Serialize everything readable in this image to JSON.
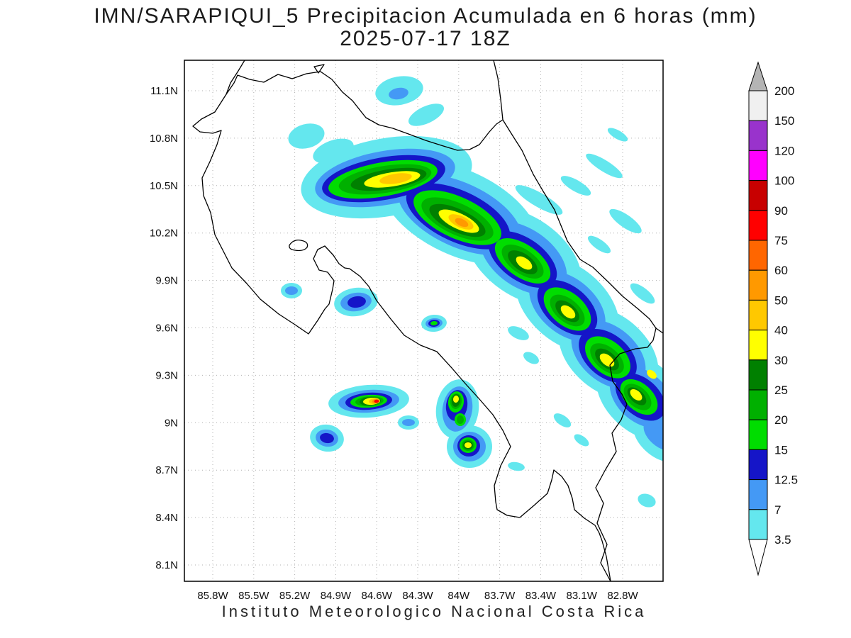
{
  "title": {
    "line1": "IMN/SARAPIQUI_5 Precipitacion Acumulada en 6 horas (mm)",
    "line2": "2025-07-17 18Z"
  },
  "footer": {
    "caption": "Instituto Meteorologico Nacional Costa Rica"
  },
  "chart_data": {
    "type": "heatmap",
    "subtype": "filled_contour_precipitation_map",
    "title": "IMN/SARAPIQUI_5 Precipitacion Acumulada en 6 horas (mm)",
    "subtitle": "2025-07-17 18Z",
    "units": "mm",
    "region": "Costa Rica",
    "grid": true,
    "legend_position": "right",
    "x_ticks": [
      "85.8W",
      "85.5W",
      "85.2W",
      "84.9W",
      "84.6W",
      "84.3W",
      "84W",
      "83.7W",
      "83.4W",
      "83.1W",
      "82.8W"
    ],
    "y_ticks": [
      "11.1N",
      "10.8N",
      "10.5N",
      "10.2N",
      "9.9N",
      "9.6N",
      "9.3N",
      "9N",
      "8.7N",
      "8.4N",
      "8.1N"
    ],
    "under_color": "#FFFFFF",
    "over_color": "#B4B4B4",
    "levels": [
      {
        "value": "3.5",
        "band_color": "#64E7EE"
      },
      {
        "value": "7",
        "band_color": "#4499F5"
      },
      {
        "value": "12.5",
        "band_color": "#1515C8"
      },
      {
        "value": "15",
        "band_color": "#00DD00"
      },
      {
        "value": "20",
        "band_color": "#00B000"
      },
      {
        "value": "25",
        "band_color": "#008000"
      },
      {
        "value": "30",
        "band_color": "#FFFF00"
      },
      {
        "value": "40",
        "band_color": "#FFC800"
      },
      {
        "value": "50",
        "band_color": "#FF9900"
      },
      {
        "value": "60",
        "band_color": "#FF6600"
      },
      {
        "value": "75",
        "band_color": "#FF0000"
      },
      {
        "value": "90",
        "band_color": "#C80000"
      },
      {
        "value": "100",
        "band_color": "#FF00FF"
      },
      {
        "value": "120",
        "band_color": "#9933CC"
      },
      {
        "value": "150",
        "band_color": "#F0F0F0"
      },
      {
        "value": "200",
        "band_color": "#B4B4B4"
      }
    ],
    "cells": [
      {
        "x": 545,
        "y": 250,
        "rx": 122,
        "ry": 55,
        "rot": -10,
        "l": 0
      },
      {
        "x": 648,
        "y": 300,
        "rx": 118,
        "ry": 60,
        "rot": 25,
        "l": 0
      },
      {
        "x": 738,
        "y": 362,
        "rx": 92,
        "ry": 56,
        "rot": 35,
        "l": 0
      },
      {
        "x": 800,
        "y": 430,
        "rx": 84,
        "ry": 54,
        "rot": 40,
        "l": 0
      },
      {
        "x": 858,
        "y": 498,
        "rx": 80,
        "ry": 54,
        "rot": 40,
        "l": 0
      },
      {
        "x": 905,
        "y": 560,
        "rx": 74,
        "ry": 50,
        "rot": 42,
        "l": 0
      },
      {
        "x": 930,
        "y": 616,
        "rx": 44,
        "ry": 28,
        "rot": 42,
        "l": 0
      },
      {
        "x": 432,
        "y": 192,
        "rx": 26,
        "ry": 17,
        "rot": -15,
        "l": 0
      },
      {
        "x": 470,
        "y": 213,
        "rx": 30,
        "ry": 15,
        "rot": -20,
        "l": 0
      },
      {
        "x": 563,
        "y": 128,
        "rx": 34,
        "ry": 20,
        "rot": -10,
        "l": 0
      },
      {
        "x": 601,
        "y": 162,
        "rx": 27,
        "ry": 12,
        "rot": -25,
        "l": 0
      },
      {
        "x": 760,
        "y": 282,
        "rx": 38,
        "ry": 10,
        "rot": 30,
        "l": 0
      },
      {
        "x": 812,
        "y": 262,
        "rx": 24,
        "ry": 8,
        "rot": 30,
        "l": 0
      },
      {
        "x": 852,
        "y": 234,
        "rx": 30,
        "ry": 8,
        "rot": 32,
        "l": 0
      },
      {
        "x": 882,
        "y": 312,
        "rx": 27,
        "ry": 9,
        "rot": 35,
        "l": 0
      },
      {
        "x": 845,
        "y": 345,
        "rx": 19,
        "ry": 7,
        "rot": 35,
        "l": 0
      },
      {
        "x": 906,
        "y": 414,
        "rx": 21,
        "ry": 8,
        "rot": 38,
        "l": 0
      },
      {
        "x": 871,
        "y": 190,
        "rx": 16,
        "ry": 6,
        "rot": 30,
        "l": 0
      },
      {
        "x": 520,
        "y": 566,
        "rx": 57,
        "ry": 23,
        "rot": -4,
        "l": 0
      },
      {
        "x": 576,
        "y": 596,
        "rx": 15,
        "ry": 10,
        "rot": 0,
        "l": 0
      },
      {
        "x": 645,
        "y": 577,
        "rx": 30,
        "ry": 42,
        "rot": 8,
        "l": 0
      },
      {
        "x": 662,
        "y": 630,
        "rx": 32,
        "ry": 30,
        "rot": 0,
        "l": 0
      },
      {
        "x": 461,
        "y": 618,
        "rx": 24,
        "ry": 19,
        "rot": 10,
        "l": 0
      },
      {
        "x": 502,
        "y": 426,
        "rx": 31,
        "ry": 20,
        "rot": -8,
        "l": 0
      },
      {
        "x": 411,
        "y": 410,
        "rx": 15,
        "ry": 11,
        "rot": 0,
        "l": 0
      },
      {
        "x": 612,
        "y": 456,
        "rx": 18,
        "ry": 12,
        "rot": -5,
        "l": 0
      },
      {
        "x": 731,
        "y": 470,
        "rx": 16,
        "ry": 8,
        "rot": 25,
        "l": 0
      },
      {
        "x": 749,
        "y": 505,
        "rx": 12,
        "ry": 7,
        "rot": 30,
        "l": 0
      },
      {
        "x": 793,
        "y": 593,
        "rx": 14,
        "ry": 7,
        "rot": 35,
        "l": 0
      },
      {
        "x": 820,
        "y": 621,
        "rx": 12,
        "ry": 6,
        "rot": 35,
        "l": 0
      },
      {
        "x": 912,
        "y": 706,
        "rx": 13,
        "ry": 9,
        "rot": 20,
        "l": 0
      },
      {
        "x": 728,
        "y": 658,
        "rx": 12,
        "ry": 6,
        "rot": 10,
        "l": 0
      },
      {
        "x": 543,
        "y": 251,
        "rx": 100,
        "ry": 38,
        "rot": -10,
        "l": 1
      },
      {
        "x": 648,
        "y": 303,
        "rx": 94,
        "ry": 45,
        "rot": 25,
        "l": 1
      },
      {
        "x": 738,
        "y": 364,
        "rx": 69,
        "ry": 41,
        "rot": 35,
        "l": 1
      },
      {
        "x": 800,
        "y": 432,
        "rx": 62,
        "ry": 39,
        "rot": 40,
        "l": 1
      },
      {
        "x": 858,
        "y": 500,
        "rx": 60,
        "ry": 39,
        "rot": 40,
        "l": 1
      },
      {
        "x": 905,
        "y": 560,
        "rx": 52,
        "ry": 35,
        "rot": 42,
        "l": 1
      },
      {
        "x": 562,
        "y": 132,
        "rx": 14,
        "ry": 8,
        "rot": -10,
        "l": 1
      },
      {
        "x": 520,
        "y": 566,
        "rx": 43,
        "ry": 16,
        "rot": -4,
        "l": 1
      },
      {
        "x": 645,
        "y": 577,
        "rx": 21,
        "ry": 32,
        "rot": 8,
        "l": 1
      },
      {
        "x": 662,
        "y": 630,
        "rx": 23,
        "ry": 21,
        "rot": 0,
        "l": 1
      },
      {
        "x": 461,
        "y": 618,
        "rx": 16,
        "ry": 12,
        "rot": 10,
        "l": 1
      },
      {
        "x": 502,
        "y": 426,
        "rx": 22,
        "ry": 13,
        "rot": -8,
        "l": 1
      },
      {
        "x": 411,
        "y": 410,
        "rx": 9,
        "ry": 6,
        "rot": 0,
        "l": 1
      },
      {
        "x": 612,
        "y": 456,
        "rx": 12,
        "ry": 7,
        "rot": -5,
        "l": 1
      },
      {
        "x": 576,
        "y": 596,
        "rx": 9,
        "ry": 5,
        "rot": 0,
        "l": 1
      },
      {
        "x": 930,
        "y": 614,
        "rx": 27,
        "ry": 15,
        "rot": 42,
        "l": 1
      },
      {
        "x": 541,
        "y": 252,
        "rx": 88,
        "ry": 30,
        "rot": -10,
        "l": 2
      },
      {
        "x": 646,
        "y": 305,
        "rx": 79,
        "ry": 36,
        "rot": 25,
        "l": 2
      },
      {
        "x": 737,
        "y": 366,
        "rx": 55,
        "ry": 30,
        "rot": 35,
        "l": 2
      },
      {
        "x": 800,
        "y": 434,
        "rx": 49,
        "ry": 30,
        "rot": 40,
        "l": 2
      },
      {
        "x": 857,
        "y": 502,
        "rx": 47,
        "ry": 30,
        "rot": 40,
        "l": 2
      },
      {
        "x": 903,
        "y": 560,
        "rx": 41,
        "ry": 26,
        "rot": 42,
        "l": 2
      },
      {
        "x": 520,
        "y": 566,
        "rx": 33,
        "ry": 12,
        "rot": -4,
        "l": 2
      },
      {
        "x": 644,
        "y": 572,
        "rx": 15,
        "ry": 22,
        "rot": 8,
        "l": 2
      },
      {
        "x": 661,
        "y": 629,
        "rx": 16,
        "ry": 15,
        "rot": 0,
        "l": 2
      },
      {
        "x": 461,
        "y": 618,
        "rx": 10,
        "ry": 7,
        "rot": 10,
        "l": 2
      },
      {
        "x": 503,
        "y": 426,
        "rx": 13,
        "ry": 8,
        "rot": -8,
        "l": 2
      },
      {
        "x": 612,
        "y": 456,
        "rx": 8,
        "ry": 5,
        "rot": -5,
        "l": 2
      },
      {
        "x": 540,
        "y": 253,
        "rx": 78,
        "ry": 24,
        "rot": -10,
        "l": 3
      },
      {
        "x": 645,
        "y": 307,
        "rx": 67,
        "ry": 29,
        "rot": 25,
        "l": 3
      },
      {
        "x": 737,
        "y": 368,
        "rx": 45,
        "ry": 23,
        "rot": 35,
        "l": 3
      },
      {
        "x": 800,
        "y": 436,
        "rx": 39,
        "ry": 23,
        "rot": 40,
        "l": 3
      },
      {
        "x": 857,
        "y": 504,
        "rx": 37,
        "ry": 23,
        "rot": 40,
        "l": 3
      },
      {
        "x": 901,
        "y": 560,
        "rx": 31,
        "ry": 19,
        "rot": 42,
        "l": 3
      },
      {
        "x": 520,
        "y": 566,
        "rx": 26,
        "ry": 9,
        "rot": -4,
        "l": 3
      },
      {
        "x": 643,
        "y": 567,
        "rx": 11,
        "ry": 15,
        "rot": 8,
        "l": 3
      },
      {
        "x": 649,
        "y": 592,
        "rx": 8,
        "ry": 9,
        "rot": 0,
        "l": 3
      },
      {
        "x": 660,
        "y": 628,
        "rx": 12,
        "ry": 11,
        "rot": 0,
        "l": 3
      },
      {
        "x": 612,
        "y": 456,
        "rx": 5,
        "ry": 3,
        "rot": -5,
        "l": 3
      },
      {
        "x": 543,
        "y": 253,
        "rx": 66,
        "ry": 19,
        "rot": -9,
        "l": 4
      },
      {
        "x": 645,
        "y": 309,
        "rx": 55,
        "ry": 22,
        "rot": 25,
        "l": 4
      },
      {
        "x": 737,
        "y": 369,
        "rx": 34,
        "ry": 17,
        "rot": 35,
        "l": 4
      },
      {
        "x": 800,
        "y": 438,
        "rx": 29,
        "ry": 16,
        "rot": 40,
        "l": 4
      },
      {
        "x": 856,
        "y": 506,
        "rx": 28,
        "ry": 16,
        "rot": 40,
        "l": 4
      },
      {
        "x": 899,
        "y": 560,
        "rx": 23,
        "ry": 14,
        "rot": 42,
        "l": 4
      },
      {
        "x": 521,
        "y": 566,
        "rx": 20,
        "ry": 7,
        "rot": -4,
        "l": 4
      },
      {
        "x": 643,
        "y": 566,
        "rx": 8,
        "ry": 11,
        "rot": 8,
        "l": 4
      },
      {
        "x": 649,
        "y": 592,
        "rx": 5,
        "ry": 6,
        "rot": 0,
        "l": 4
      },
      {
        "x": 660,
        "y": 628,
        "rx": 9,
        "ry": 8,
        "rot": 0,
        "l": 4
      },
      {
        "x": 548,
        "y": 253,
        "rx": 54,
        "ry": 14,
        "rot": -9,
        "l": 5
      },
      {
        "x": 645,
        "y": 311,
        "rx": 43,
        "ry": 16,
        "rot": 25,
        "l": 5
      },
      {
        "x": 737,
        "y": 370,
        "rx": 24,
        "ry": 12,
        "rot": 35,
        "l": 5
      },
      {
        "x": 800,
        "y": 439,
        "rx": 20,
        "ry": 11,
        "rot": 40,
        "l": 5
      },
      {
        "x": 856,
        "y": 507,
        "rx": 20,
        "ry": 11,
        "rot": 40,
        "l": 5
      },
      {
        "x": 898,
        "y": 559,
        "rx": 16,
        "ry": 9,
        "rot": 42,
        "l": 5
      },
      {
        "x": 522,
        "y": 566,
        "rx": 15,
        "ry": 6,
        "rot": -4,
        "l": 5
      },
      {
        "x": 643,
        "y": 565,
        "rx": 6,
        "ry": 9,
        "rot": 8,
        "l": 5
      },
      {
        "x": 660,
        "y": 628,
        "rx": 7,
        "ry": 6,
        "rot": 0,
        "l": 5
      },
      {
        "x": 553,
        "y": 253,
        "rx": 40,
        "ry": 10,
        "rot": -9,
        "l": 6
      },
      {
        "x": 647,
        "y": 312,
        "rx": 31,
        "ry": 11,
        "rot": 25,
        "l": 6
      },
      {
        "x": 739,
        "y": 371,
        "rx": 13,
        "ry": 7,
        "rot": 35,
        "l": 6
      },
      {
        "x": 801,
        "y": 440,
        "rx": 12,
        "ry": 7,
        "rot": 40,
        "l": 6
      },
      {
        "x": 856,
        "y": 508,
        "rx": 12,
        "ry": 7,
        "rot": 40,
        "l": 6
      },
      {
        "x": 897,
        "y": 557,
        "rx": 10,
        "ry": 6,
        "rot": 42,
        "l": 6
      },
      {
        "x": 919,
        "y": 528,
        "rx": 8,
        "ry": 5,
        "rot": 40,
        "l": 6
      },
      {
        "x": 524,
        "y": 566,
        "rx": 12,
        "ry": 5,
        "rot": -4,
        "l": 6
      },
      {
        "x": 643,
        "y": 563,
        "rx": 4,
        "ry": 5,
        "rot": 8,
        "l": 6
      },
      {
        "x": 660,
        "y": 628,
        "rx": 5,
        "ry": 4,
        "rot": 0,
        "l": 6
      },
      {
        "x": 558,
        "y": 252,
        "rx": 23,
        "ry": 7,
        "rot": -9,
        "l": 7
      },
      {
        "x": 650,
        "y": 313,
        "rx": 19,
        "ry": 8,
        "rot": 25,
        "l": 7
      },
      {
        "x": 528,
        "y": 566,
        "rx": 8,
        "ry": 4,
        "rot": -4,
        "l": 7
      },
      {
        "x": 651,
        "y": 314,
        "rx": 10,
        "ry": 5,
        "rot": 25,
        "l": 8
      },
      {
        "x": 530,
        "y": 566,
        "rx": 5.5,
        "ry": 3,
        "rot": -4,
        "l": 8
      },
      {
        "x": 531,
        "y": 566,
        "rx": 3.5,
        "ry": 2.2,
        "rot": -4,
        "l": 10
      }
    ]
  }
}
